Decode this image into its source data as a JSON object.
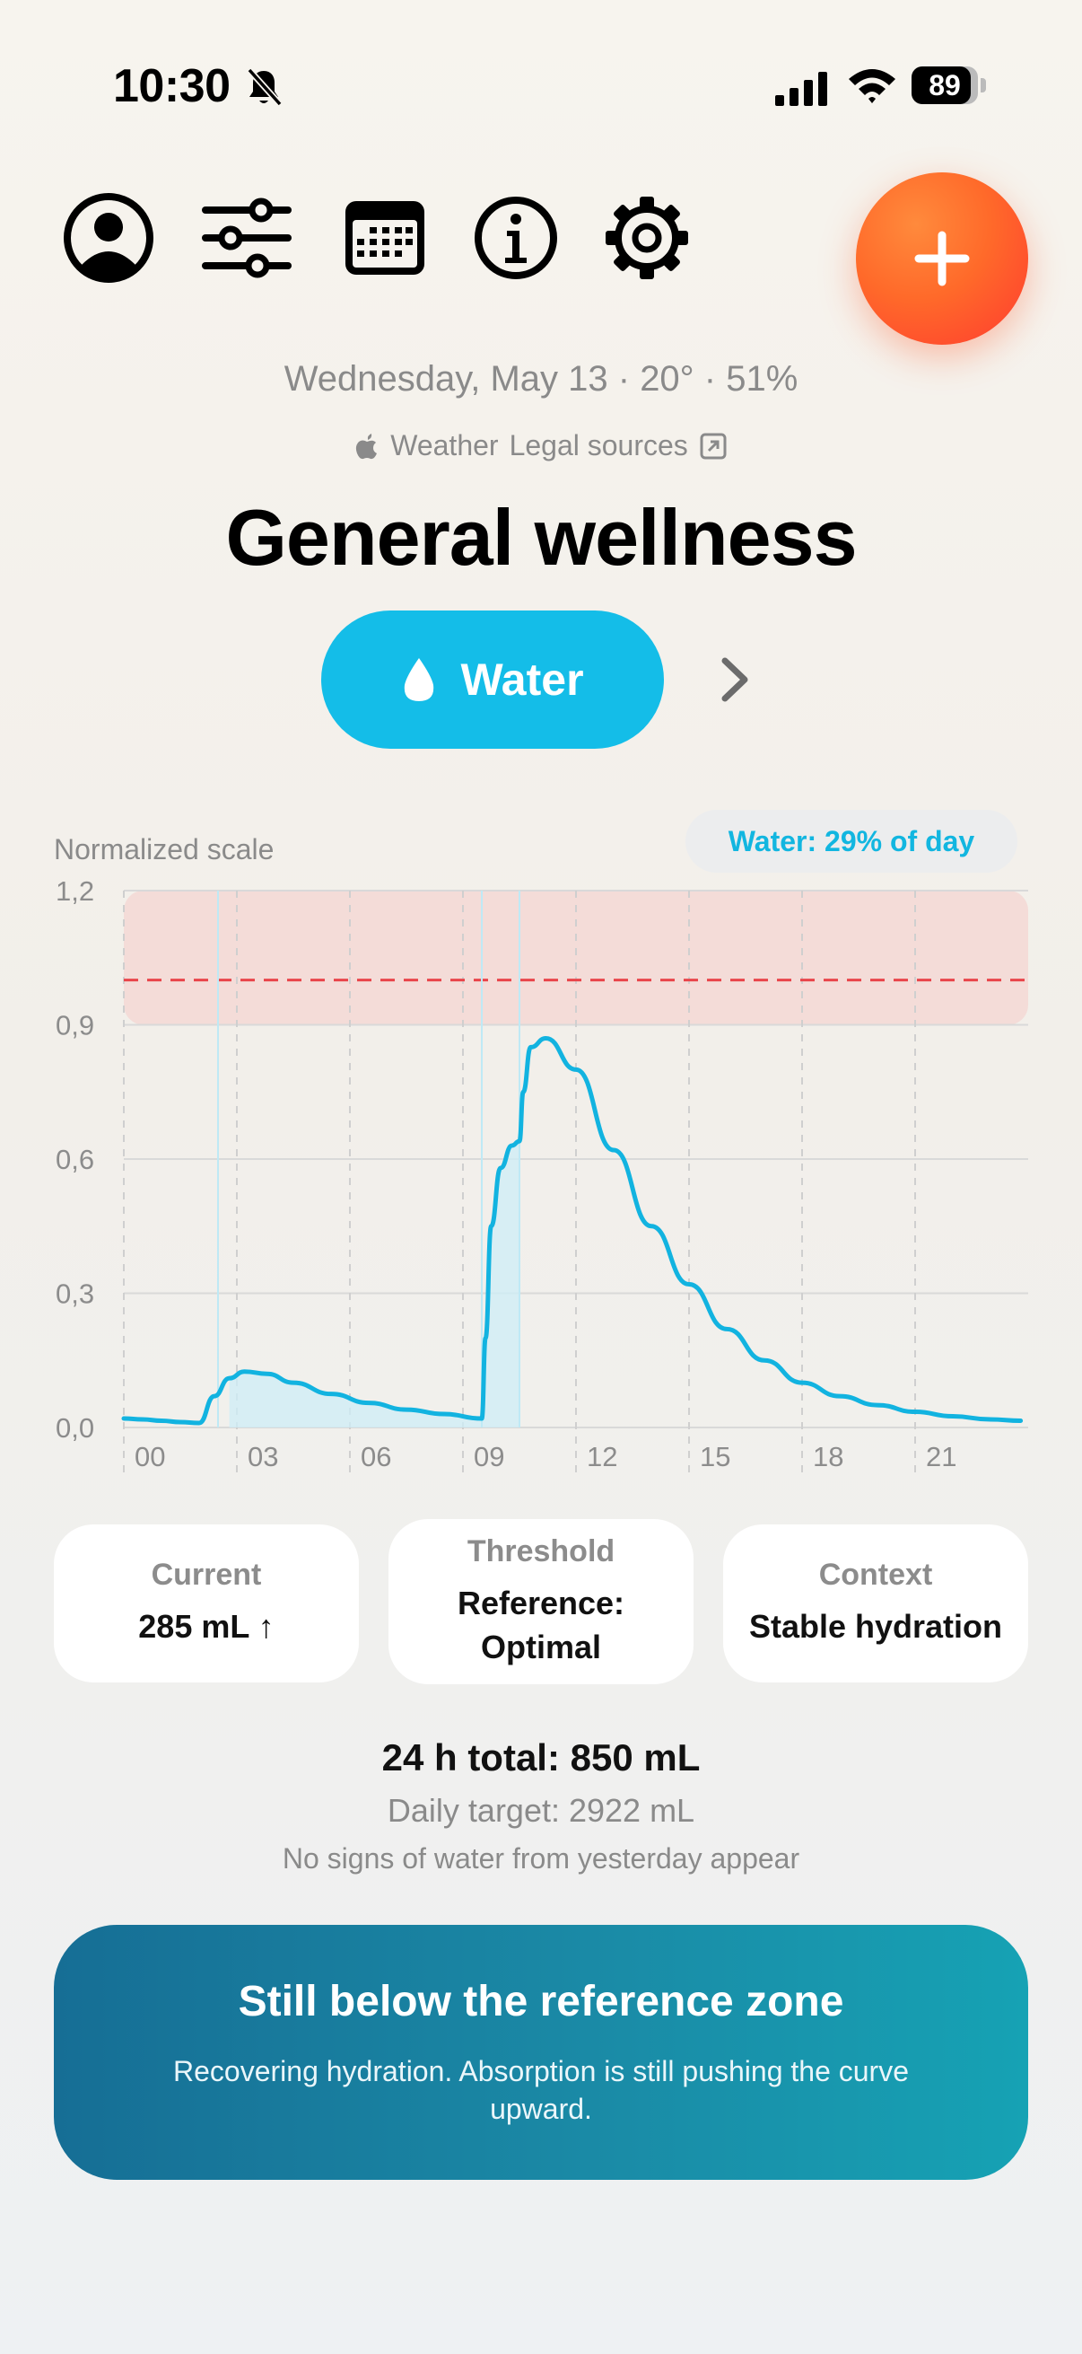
{
  "status_bar": {
    "time": "10:30",
    "battery": "89"
  },
  "toolbar": {
    "icons": [
      "profile-icon",
      "sliders-icon",
      "calendar-icon",
      "info-icon",
      "gear-icon"
    ],
    "add_icon": "plus-icon"
  },
  "header": {
    "meta": "Wednesday, May 13 · 20° · 51%",
    "weather_label": "Weather",
    "legal_label": "Legal sources",
    "title": "General wellness"
  },
  "selector": {
    "label": "Water",
    "icon": "water-drop-icon"
  },
  "chart": {
    "scale_label": "Normalized scale",
    "badge": "Water: 29% of day"
  },
  "chart_data": {
    "type": "area",
    "x_ticks": [
      "00",
      "03",
      "06",
      "09",
      "12",
      "15",
      "18",
      "21"
    ],
    "y_ticks": [
      "0,0",
      "0,3",
      "0,6",
      "0,9",
      "1,2"
    ],
    "xlim": [
      0,
      24
    ],
    "ylim": [
      0,
      1.2
    ],
    "threshold_line": 1.0,
    "reference_zone": [
      0.9,
      1.2
    ],
    "series": [
      {
        "x": [
          0,
          0.5,
          1,
          1.5,
          2,
          2.4,
          2.8,
          3.2,
          3.8,
          4.5,
          5.5,
          6.5,
          7.5,
          8.5,
          9.5,
          9.6,
          9.75,
          10,
          10.3,
          10.5,
          10.6,
          10.8,
          11.2,
          12,
          13,
          14,
          15,
          16,
          17,
          18,
          19,
          20,
          21,
          22,
          23,
          23.8
        ],
        "y": [
          0.02,
          0.018,
          0.015,
          0.012,
          0.01,
          0.07,
          0.11,
          0.125,
          0.12,
          0.1,
          0.075,
          0.055,
          0.04,
          0.03,
          0.02,
          0.2,
          0.45,
          0.58,
          0.63,
          0.64,
          0.75,
          0.85,
          0.87,
          0.8,
          0.62,
          0.45,
          0.32,
          0.22,
          0.15,
          0.1,
          0.07,
          0.05,
          0.035,
          0.025,
          0.018,
          0.015
        ]
      }
    ],
    "intake_markers": [
      2.5,
      9.5,
      10.5
    ],
    "shaded_ranges": [
      [
        2.5,
        9.5
      ],
      [
        9.5,
        10.5
      ]
    ]
  },
  "stats": [
    {
      "label": "Current",
      "value": "285 mL ↑"
    },
    {
      "label": "Threshold",
      "value": "Reference: Optimal"
    },
    {
      "label": "Context",
      "value": "Stable hydration"
    }
  ],
  "summary": {
    "total": "24 h total: 850 mL",
    "target": "Daily target: 2922 mL",
    "note": "No signs of water from yesterday appear"
  },
  "banner": {
    "title": "Still below the reference zone",
    "text": "Recovering hydration. Absorption is still pushing the curve upward."
  },
  "colors": {
    "accent": "#14bde8",
    "warning": "#e9454b",
    "fab": "#ff5a2e",
    "banner": "#1a7fa0"
  }
}
